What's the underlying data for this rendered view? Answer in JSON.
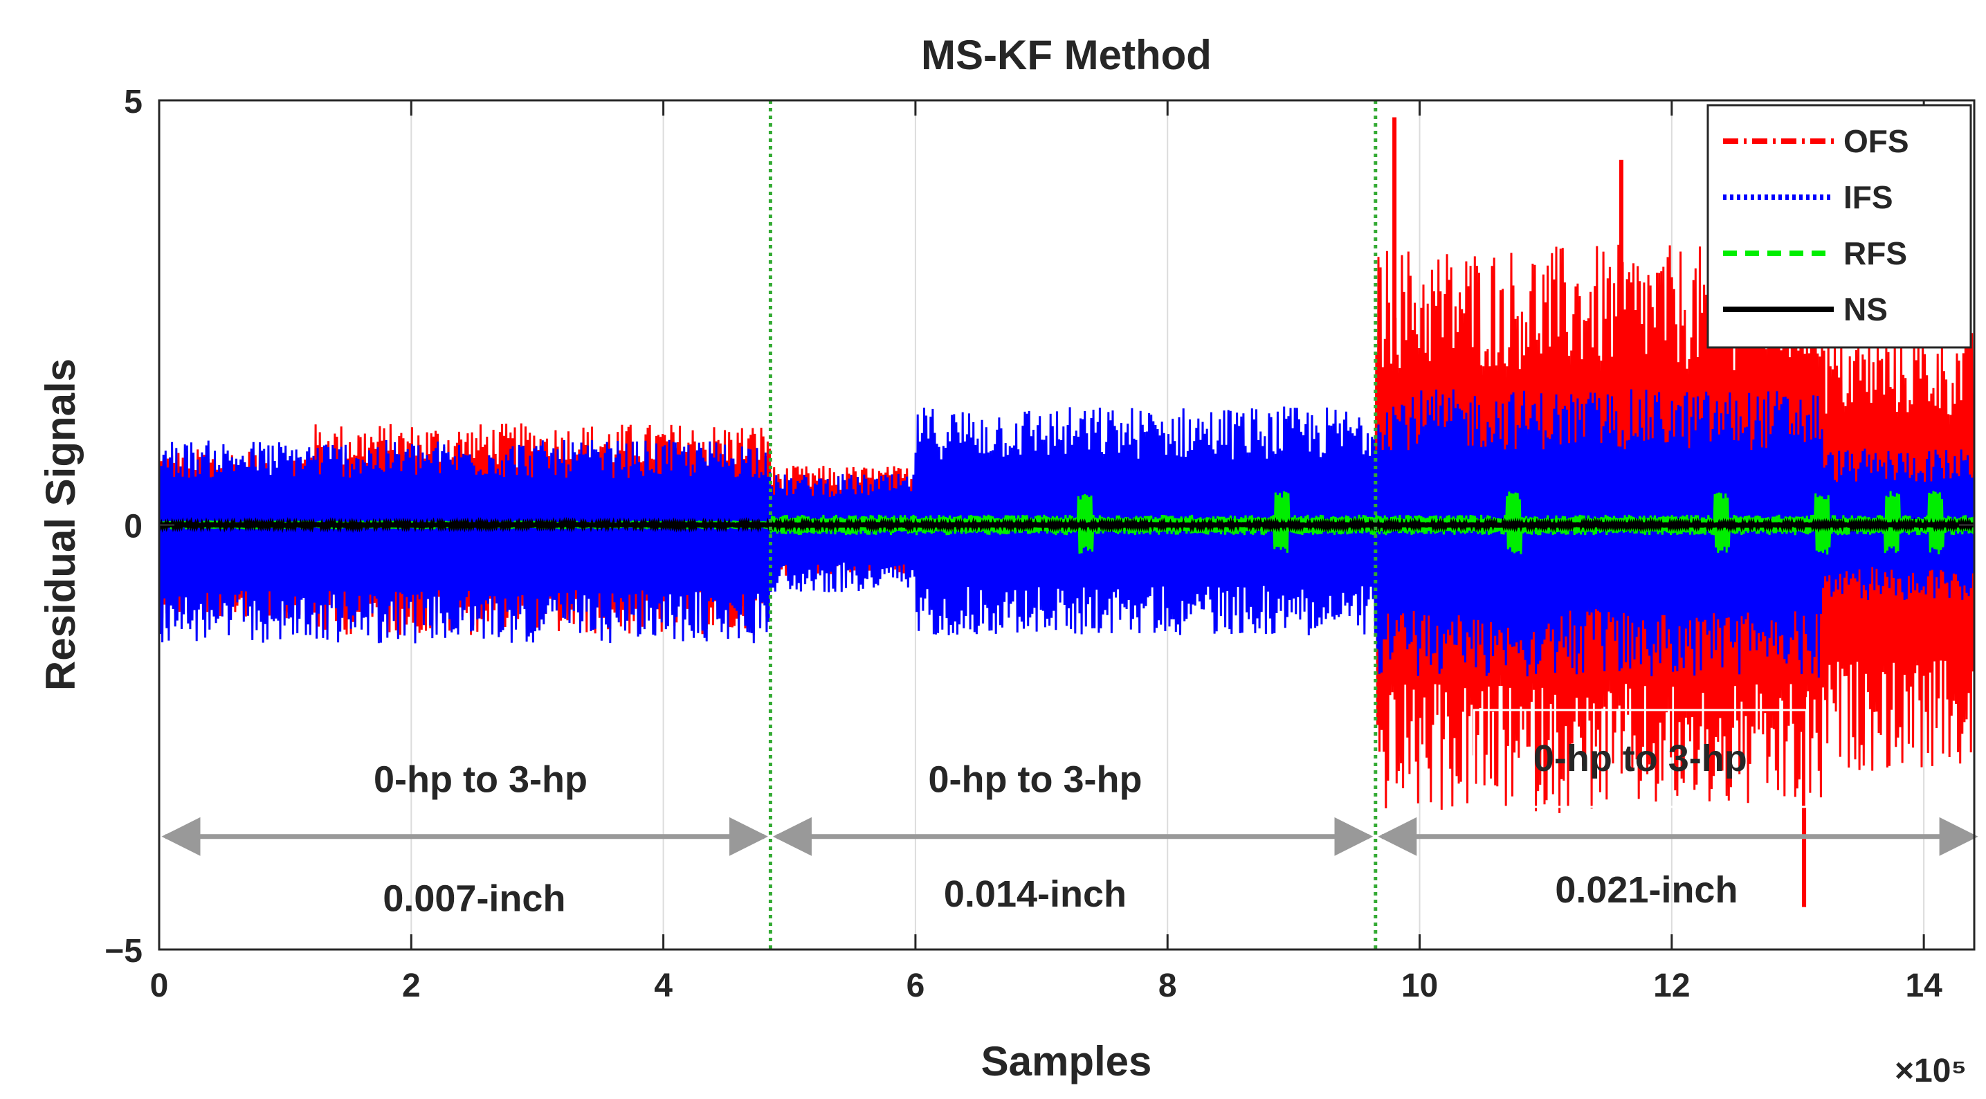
{
  "chart_data": {
    "type": "line",
    "title": "MS-KF Method",
    "xlabel": "Samples",
    "ylabel": "Residual Signals",
    "x_exponent": "×10⁵",
    "xlim": [
      0,
      14.4
    ],
    "ylim": [
      -5,
      5
    ],
    "x_ticks": [
      0,
      2,
      4,
      6,
      8,
      10,
      12,
      14
    ],
    "y_ticks": [
      -5,
      0,
      5
    ],
    "x_tick_labels": [
      "0",
      "2",
      "4",
      "6",
      "8",
      "10",
      "12",
      "14"
    ],
    "y_tick_labels": [
      "−5",
      "0",
      "5"
    ],
    "grid": "vertical",
    "legend_position": "top-right",
    "series": [
      {
        "name": "OFS",
        "color": "#ff0000",
        "style": "dash-dot",
        "envelope": [
          {
            "x_start": 0.0,
            "x_end": 1.2,
            "upper": 0.9,
            "lower": -1.1
          },
          {
            "x_start": 1.2,
            "x_end": 4.85,
            "upper": 1.2,
            "lower": -1.3
          },
          {
            "x_start": 4.85,
            "x_end": 9.65,
            "upper": 0.7,
            "lower": -0.6
          },
          {
            "x_start": 9.65,
            "x_end": 13.2,
            "upper": 3.3,
            "lower": -3.4
          },
          {
            "x_start": 13.2,
            "x_end": 14.45,
            "upper": 2.3,
            "lower": -2.9
          }
        ],
        "peaks": [
          {
            "x": 9.8,
            "y": 4.8
          },
          {
            "x": 11.6,
            "y": 4.3
          },
          {
            "x": 13.05,
            "y": -4.5
          }
        ]
      },
      {
        "name": "IFS",
        "color": "#0000ff",
        "style": "dotted",
        "envelope": [
          {
            "x_start": 0.0,
            "x_end": 4.85,
            "upper": 1.0,
            "lower": -1.4
          },
          {
            "x_start": 4.85,
            "x_end": 6.0,
            "upper": 0.6,
            "lower": -0.8
          },
          {
            "x_start": 6.0,
            "x_end": 9.65,
            "upper": 1.4,
            "lower": -1.3
          },
          {
            "x_start": 9.65,
            "x_end": 13.2,
            "upper": 1.6,
            "lower": -1.8
          },
          {
            "x_start": 13.2,
            "x_end": 14.45,
            "upper": 0.9,
            "lower": -0.9
          }
        ]
      },
      {
        "name": "RFS",
        "color": "#00ee00",
        "style": "dashed",
        "envelope": [
          {
            "x_start": 0.0,
            "x_end": 4.85,
            "upper": 0.05,
            "lower": -0.05
          },
          {
            "x_start": 4.85,
            "x_end": 14.45,
            "upper": 0.12,
            "lower": -0.12
          }
        ],
        "bursts": [
          7.35,
          8.9,
          10.75,
          12.4,
          13.2,
          13.75,
          14.1
        ]
      },
      {
        "name": "NS",
        "color": "#000000",
        "style": "solid",
        "envelope": [
          {
            "x_start": 0.0,
            "x_end": 14.45,
            "upper": 0.03,
            "lower": -0.03
          }
        ]
      }
    ],
    "vertical_lines": [
      {
        "x": 4.85,
        "color": "#33aa33",
        "style": "dotted"
      },
      {
        "x": 9.65,
        "color": "#33aa33",
        "style": "dotted"
      }
    ],
    "annotations": [
      {
        "text": "0-hp to 3-hp",
        "x": 2.55,
        "y": -3.0,
        "boxed": false
      },
      {
        "text": "0.007-inch",
        "x": 2.5,
        "y": -4.4,
        "boxed": false
      },
      {
        "text": "0-hp to 3-hp",
        "x": 6.95,
        "y": -3.0,
        "boxed": false
      },
      {
        "text": "0.014-inch",
        "x": 6.95,
        "y": -4.35,
        "boxed": false
      },
      {
        "text": "0-hp to 3-hp",
        "x": 11.75,
        "y": -2.75,
        "boxed": true
      },
      {
        "text": "0.021-inch",
        "x": 11.8,
        "y": -4.3,
        "boxed": false
      }
    ],
    "arrows": [
      {
        "x_start": 0.05,
        "x_end": 4.8,
        "y": -3.67,
        "color": "#999999",
        "double_headed": true
      },
      {
        "x_start": 4.9,
        "x_end": 9.6,
        "y": -3.67,
        "color": "#999999",
        "double_headed": true
      },
      {
        "x_start": 9.7,
        "x_end": 14.4,
        "y": -3.67,
        "color": "#999999",
        "double_headed": true
      }
    ]
  }
}
